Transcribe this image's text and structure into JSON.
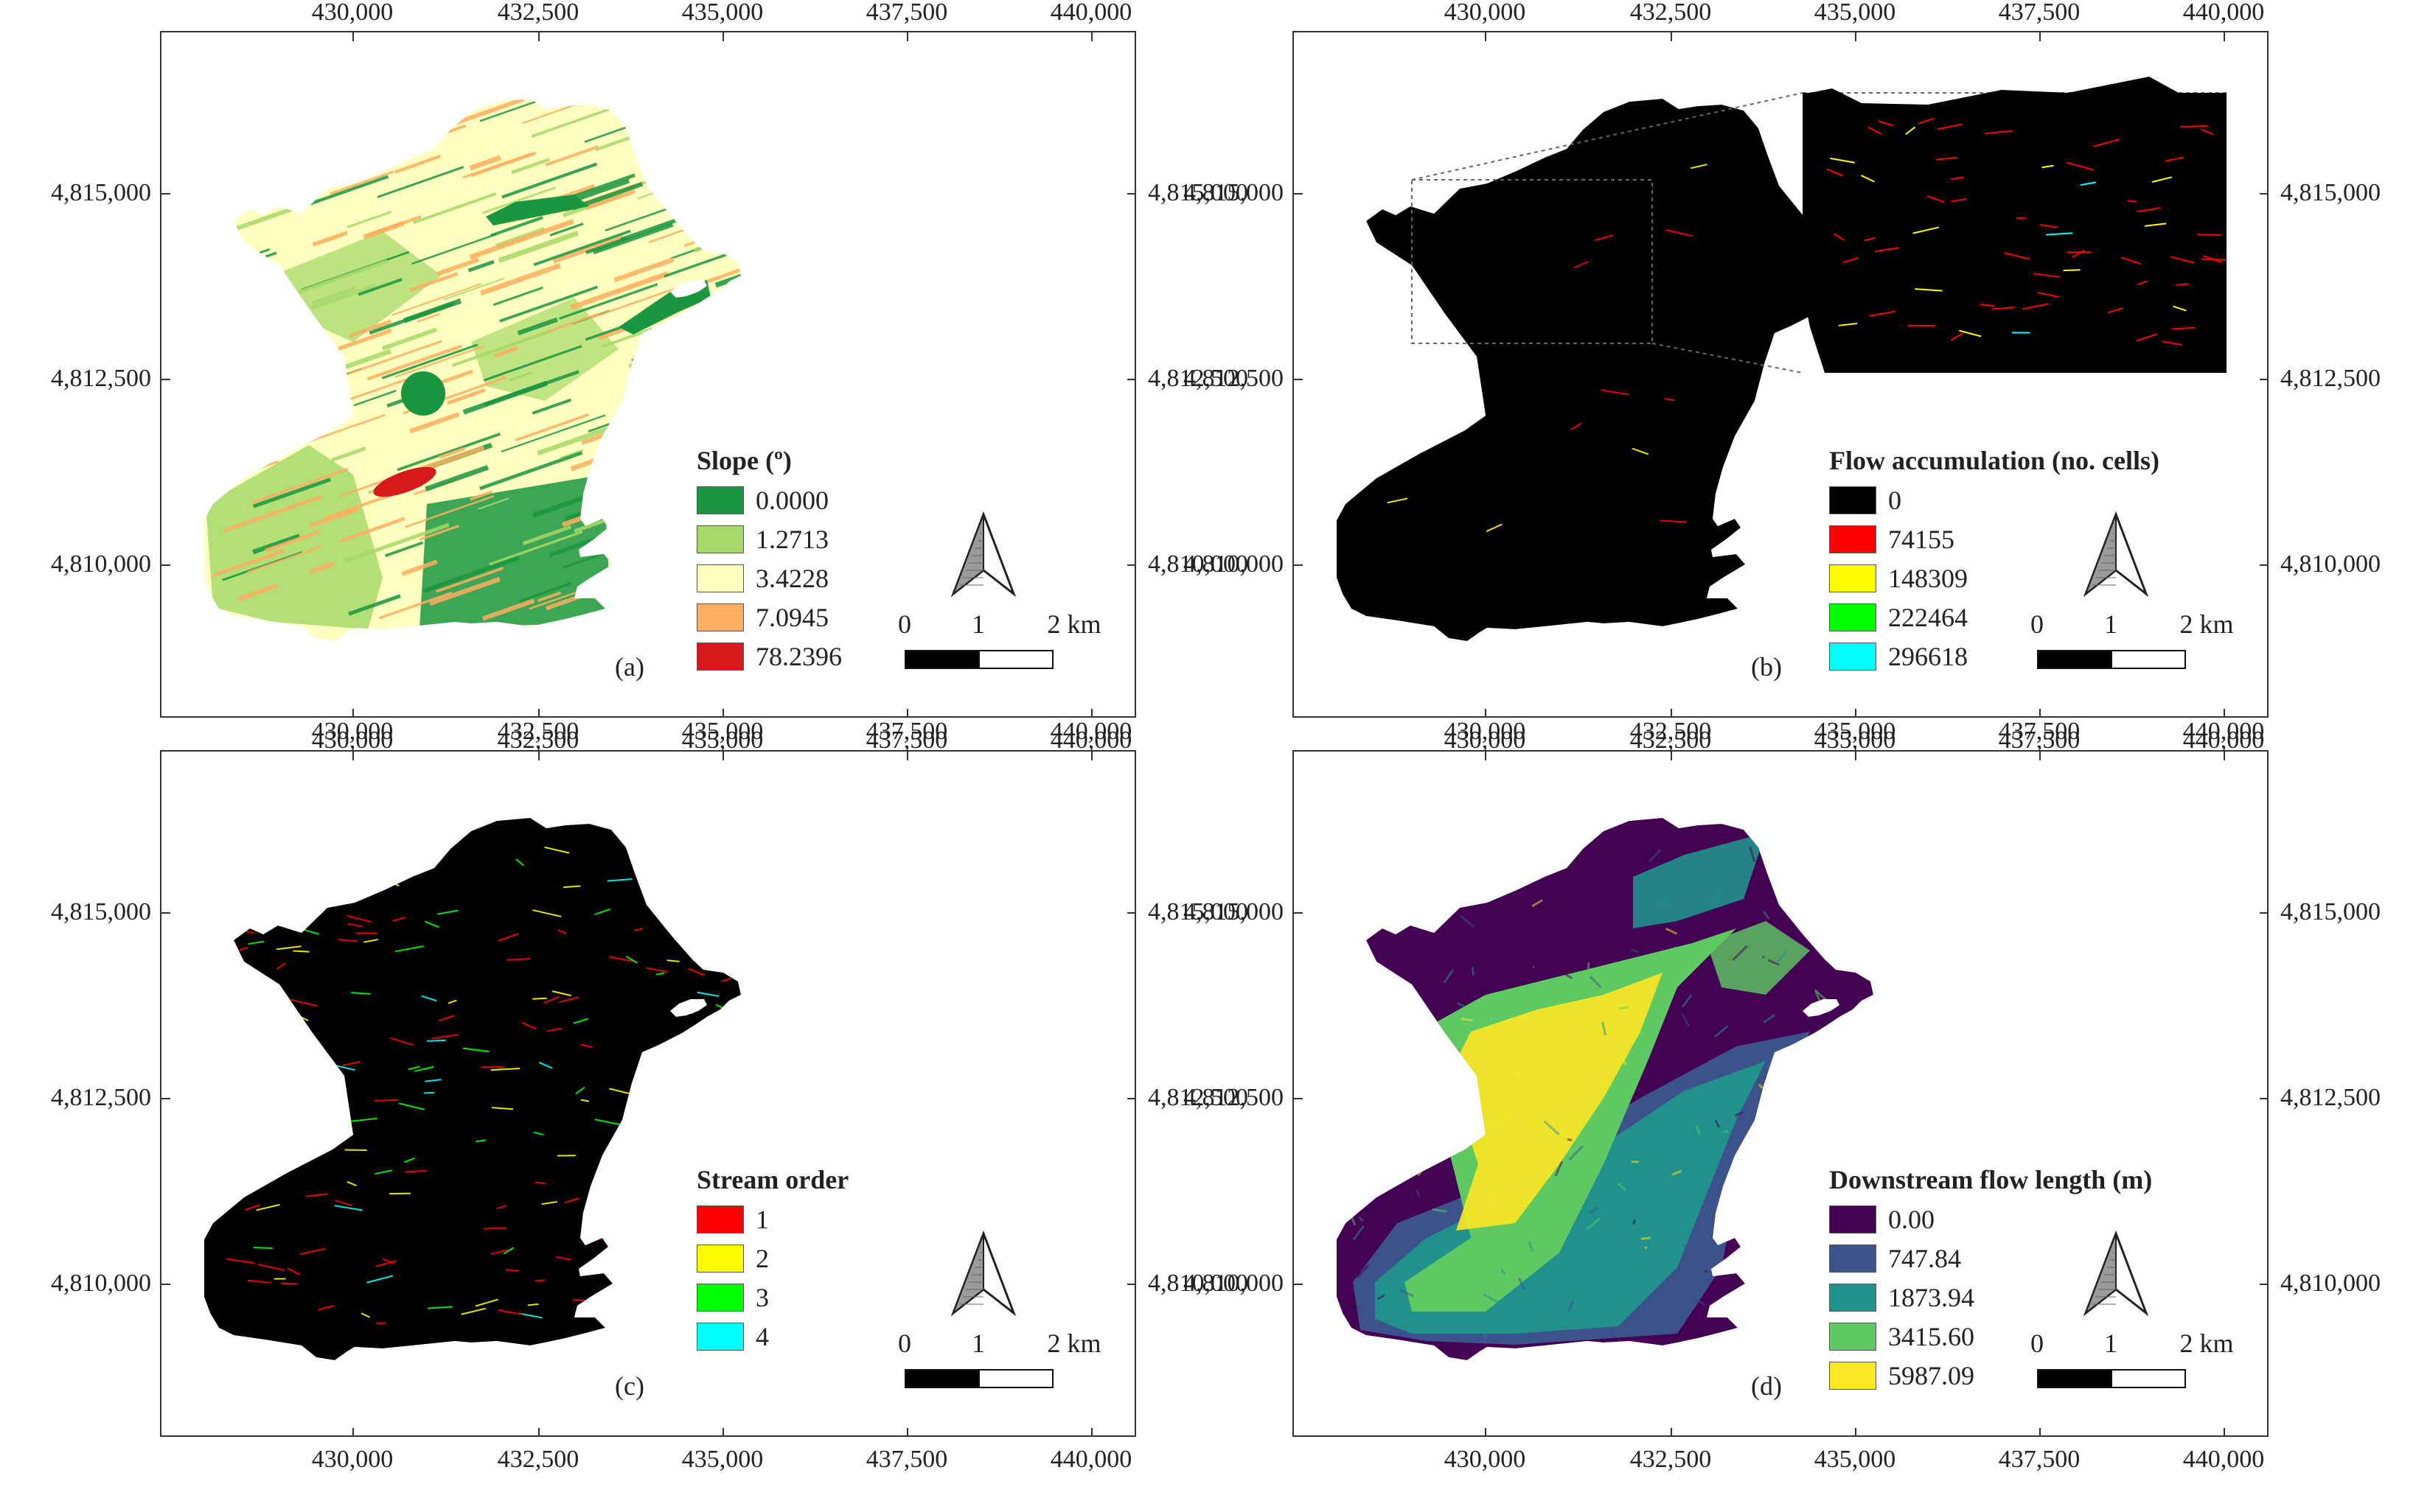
{
  "axes": {
    "x_ticks": [
      "430,000",
      "432,500",
      "435,000",
      "437,500",
      "440,000"
    ],
    "y_ticks": [
      "4,815,000",
      "4,812,500",
      "4,810,000"
    ]
  },
  "scale": {
    "labels": [
      "0",
      "1",
      "2 km"
    ]
  },
  "panels": [
    {
      "id": "a",
      "label": "(a)",
      "legend_title": "Slope (º)",
      "classes": [
        {
          "label": "0.0000",
          "color": "#1a9641"
        },
        {
          "label": "1.2713",
          "color": "#a6d96a"
        },
        {
          "label": "3.4228",
          "color": "#ffffc0"
        },
        {
          "label": "7.0945",
          "color": "#fdae61"
        },
        {
          "label": "78.2396",
          "color": "#d7191c"
        }
      ],
      "map_style": "slope"
    },
    {
      "id": "b",
      "label": "(b)",
      "legend_title": "Flow accumulation (no. cells)",
      "classes": [
        {
          "label": "0",
          "color": "#000000"
        },
        {
          "label": "74155",
          "color": "#ff0000"
        },
        {
          "label": "148309",
          "color": "#ffff00"
        },
        {
          "label": "222464",
          "color": "#00ff00"
        },
        {
          "label": "296618",
          "color": "#00ffff"
        }
      ],
      "map_style": "flow"
    },
    {
      "id": "c",
      "label": "(c)",
      "legend_title": "Stream order",
      "classes": [
        {
          "label": "1",
          "color": "#ff0000"
        },
        {
          "label": "2",
          "color": "#ffff00"
        },
        {
          "label": "3",
          "color": "#00ff00"
        },
        {
          "label": "4",
          "color": "#00ffff"
        }
      ],
      "map_style": "stream"
    },
    {
      "id": "d",
      "label": "(d)",
      "legend_title": "Downstream flow length (m)",
      "classes": [
        {
          "label": "0.00",
          "color": "#440154"
        },
        {
          "label": "747.84",
          "color": "#3b528b"
        },
        {
          "label": "1873.94",
          "color": "#21918c"
        },
        {
          "label": "3415.60",
          "color": "#5ec962"
        },
        {
          "label": "5987.09",
          "color": "#fde725"
        }
      ],
      "map_style": "length"
    }
  ]
}
